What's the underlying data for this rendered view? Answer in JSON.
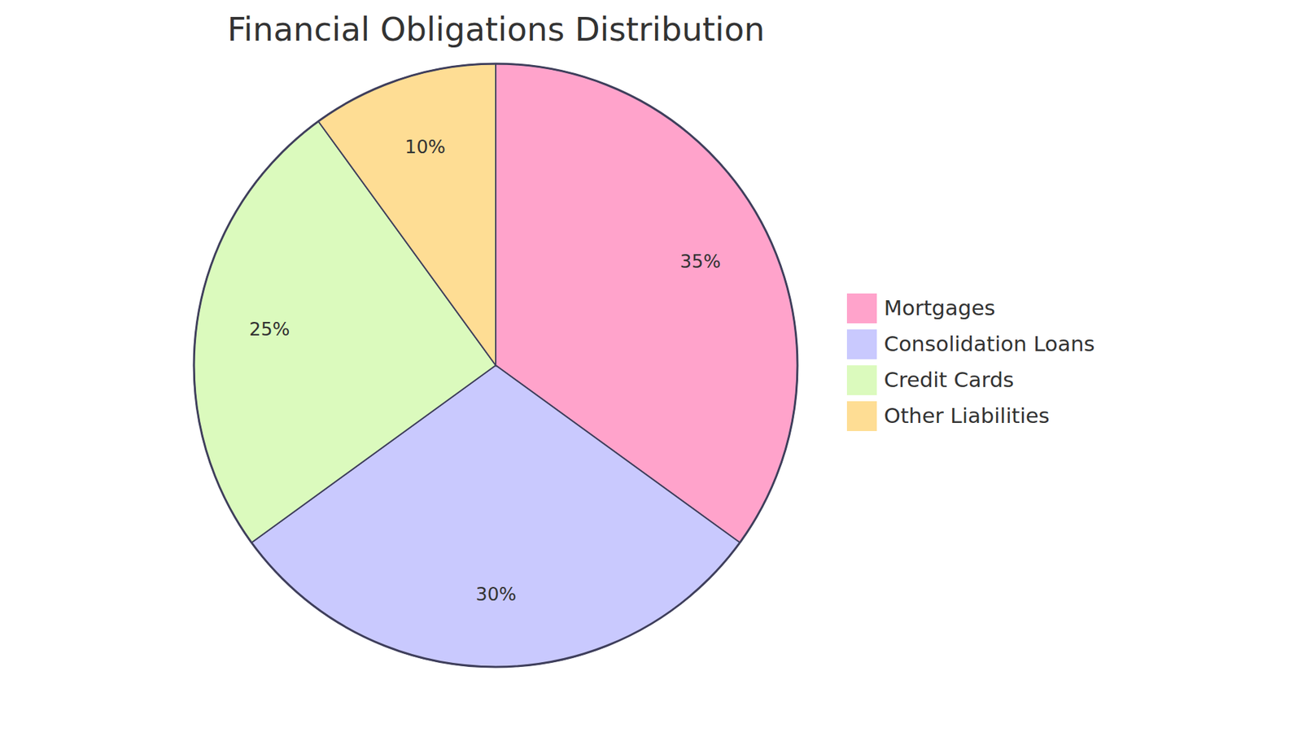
{
  "chart_data": {
    "type": "pie",
    "title": "Financial Obligations Distribution",
    "categories": [
      "Mortgages",
      "Consolidation Loans",
      "Credit Cards",
      "Other Liabilities"
    ],
    "values": [
      35,
      30,
      25,
      10
    ],
    "value_labels": [
      "35%",
      "30%",
      "25%",
      "10%"
    ],
    "colors": [
      "#ffa3cb",
      "#c9c9fe",
      "#dbfabd",
      "#fedd94"
    ],
    "data_labels": true,
    "legend": "right"
  }
}
